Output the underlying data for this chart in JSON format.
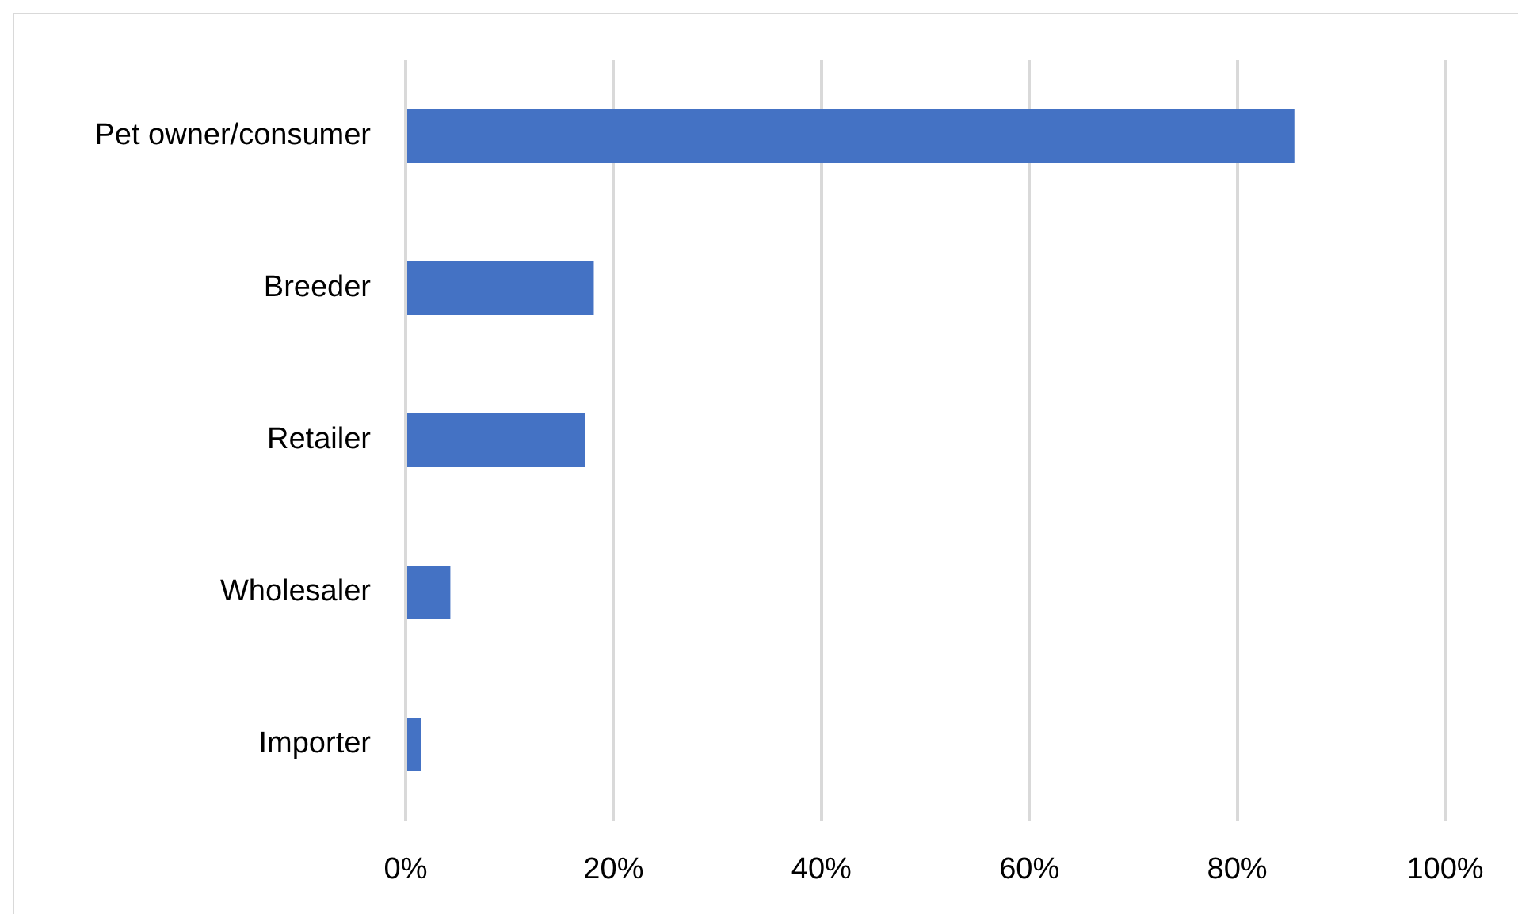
{
  "chart_data": {
    "type": "bar",
    "orientation": "horizontal",
    "categories": [
      "Pet owner/consumer",
      "Breeder",
      "Retailer",
      "Wholesaler",
      "Importer"
    ],
    "values": [
      85.5,
      18.1,
      17.3,
      4.3,
      1.5
    ],
    "color": "#4472c4",
    "xlim": [
      0,
      100
    ],
    "xticks": [
      {
        "value": 0,
        "label": "0%"
      },
      {
        "value": 20,
        "label": "20%"
      },
      {
        "value": 40,
        "label": "40%"
      },
      {
        "value": 60,
        "label": "60%"
      },
      {
        "value": 80,
        "label": "80%"
      },
      {
        "value": 100,
        "label": "100%"
      }
    ],
    "grid": "x"
  }
}
